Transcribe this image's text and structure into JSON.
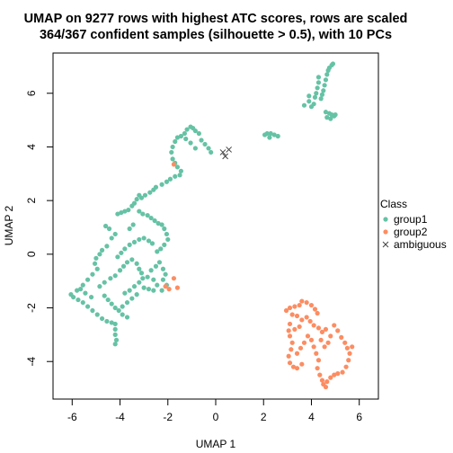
{
  "chart_data": {
    "type": "scatter",
    "title_line1": "UMAP on 9277 rows with highest ATC scores, rows are scaled",
    "title_line2": "364/367 confident samples (silhouette > 0.5), with 10 PCs",
    "xlabel": "UMAP 1",
    "ylabel": "UMAP 2",
    "xlim": [
      -6.8,
      6.8
    ],
    "ylim": [
      -5.4,
      7.5
    ],
    "xticks": [
      -6,
      -4,
      -2,
      0,
      2,
      4,
      6
    ],
    "yticks": [
      -4,
      -2,
      0,
      2,
      4,
      6
    ],
    "grid": false,
    "legend": {
      "title": "Class",
      "placement": "right",
      "items": [
        {
          "label": "group1",
          "color": "#66C2A5",
          "marker": "dot"
        },
        {
          "label": "group2",
          "color": "#FC8D62",
          "marker": "dot"
        },
        {
          "label": "ambiguous",
          "color": "#444444",
          "marker": "x"
        }
      ]
    },
    "series": [
      {
        "name": "group1",
        "color": "#66C2A5",
        "points": [
          [
            4.9,
            7.1
          ],
          [
            4.85,
            7.05
          ],
          [
            4.75,
            6.95
          ],
          [
            4.7,
            6.85
          ],
          [
            4.65,
            6.7
          ],
          [
            4.6,
            6.5
          ],
          [
            4.55,
            6.3
          ],
          [
            4.5,
            6.1
          ],
          [
            4.45,
            5.95
          ],
          [
            4.4,
            5.8
          ],
          [
            4.3,
            6.6
          ],
          [
            4.3,
            6.4
          ],
          [
            4.25,
            6.2
          ],
          [
            4.2,
            6.0
          ],
          [
            4.15,
            5.85
          ],
          [
            3.9,
            5.9
          ],
          [
            3.9,
            5.7
          ],
          [
            3.7,
            5.55
          ],
          [
            4.1,
            5.6
          ],
          [
            4.0,
            5.5
          ],
          [
            4.75,
            5.25
          ],
          [
            4.85,
            5.2
          ],
          [
            4.95,
            5.15
          ],
          [
            4.65,
            5.1
          ],
          [
            4.8,
            5.05
          ],
          [
            5.0,
            5.2
          ],
          [
            4.6,
            5.3
          ],
          [
            2.05,
            4.45
          ],
          [
            2.15,
            4.5
          ],
          [
            2.3,
            4.5
          ],
          [
            2.45,
            4.45
          ],
          [
            2.6,
            4.4
          ],
          [
            2.25,
            4.35
          ],
          [
            -1.05,
            4.75
          ],
          [
            -0.95,
            4.7
          ],
          [
            -1.2,
            4.65
          ],
          [
            -0.85,
            4.6
          ],
          [
            -1.3,
            4.5
          ],
          [
            -0.7,
            4.5
          ],
          [
            -1.45,
            4.4
          ],
          [
            -1.6,
            4.35
          ],
          [
            -1.7,
            4.2
          ],
          [
            -0.6,
            4.25
          ],
          [
            -0.45,
            4.1
          ],
          [
            -0.3,
            3.95
          ],
          [
            -0.2,
            3.8
          ],
          [
            -1.8,
            4.0
          ],
          [
            -1.85,
            3.8
          ],
          [
            -1.8,
            3.55
          ],
          [
            -1.7,
            3.4
          ],
          [
            -1.6,
            3.25
          ],
          [
            -1.45,
            3.1
          ],
          [
            -1.5,
            2.95
          ],
          [
            -1.7,
            2.9
          ],
          [
            -1.9,
            2.8
          ],
          [
            -2.05,
            2.7
          ],
          [
            -2.25,
            2.6
          ],
          [
            -2.5,
            2.5
          ],
          [
            -2.6,
            2.4
          ],
          [
            -2.75,
            2.3
          ],
          [
            -2.95,
            2.2
          ],
          [
            -3.1,
            2.1
          ],
          [
            -3.2,
            2.2
          ],
          [
            -3.3,
            2.05
          ],
          [
            -3.4,
            1.9
          ],
          [
            -3.5,
            1.8
          ],
          [
            -3.65,
            1.65
          ],
          [
            -3.8,
            1.6
          ],
          [
            -3.95,
            1.55
          ],
          [
            -4.1,
            1.5
          ],
          [
            -3.2,
            1.6
          ],
          [
            -3.05,
            1.5
          ],
          [
            -2.85,
            1.45
          ],
          [
            -2.7,
            1.35
          ],
          [
            -2.55,
            1.25
          ],
          [
            -2.4,
            1.15
          ],
          [
            -2.25,
            1.1
          ],
          [
            -2.15,
            0.95
          ],
          [
            -2.05,
            0.75
          ],
          [
            -2.0,
            0.55
          ],
          [
            -2.15,
            0.35
          ],
          [
            -2.3,
            0.2
          ],
          [
            -2.45,
            0.1
          ],
          [
            -4.85,
            0.0
          ],
          [
            -5.0,
            -0.15
          ],
          [
            -5.05,
            -0.35
          ],
          [
            -4.95,
            -0.55
          ],
          [
            -5.15,
            -0.75
          ],
          [
            -5.35,
            -0.95
          ],
          [
            -5.55,
            -1.15
          ],
          [
            -5.8,
            -1.35
          ],
          [
            -6.05,
            -1.5
          ],
          [
            -5.95,
            -1.6
          ],
          [
            -5.75,
            -1.7
          ],
          [
            -5.55,
            -1.8
          ],
          [
            -5.35,
            -1.95
          ],
          [
            -5.15,
            -2.1
          ],
          [
            -4.95,
            -2.25
          ],
          [
            -4.75,
            -2.4
          ],
          [
            -4.55,
            -2.5
          ],
          [
            -4.35,
            -2.55
          ],
          [
            -4.2,
            -2.6
          ],
          [
            -4.2,
            -2.8
          ],
          [
            -4.2,
            -3.0
          ],
          [
            -4.15,
            -3.2
          ],
          [
            -4.2,
            -3.35
          ],
          [
            -4.65,
            -1.55
          ],
          [
            -4.5,
            -1.7
          ],
          [
            -4.35,
            -1.85
          ],
          [
            -4.2,
            -2.0
          ],
          [
            -4.05,
            -2.1
          ],
          [
            -3.9,
            -2.25
          ],
          [
            -3.7,
            -2.35
          ],
          [
            -4.85,
            -1.2
          ],
          [
            -4.65,
            -1.05
          ],
          [
            -4.4,
            -0.9
          ],
          [
            -4.2,
            -0.8
          ],
          [
            -4.0,
            -0.6
          ],
          [
            -3.85,
            -0.45
          ],
          [
            -3.7,
            -0.3
          ],
          [
            -3.5,
            -0.2
          ],
          [
            -3.3,
            -0.35
          ],
          [
            -3.2,
            -0.55
          ],
          [
            -3.1,
            -0.7
          ],
          [
            -3.05,
            -0.9
          ],
          [
            -3.2,
            -1.05
          ],
          [
            -3.4,
            -1.2
          ],
          [
            -3.6,
            -1.35
          ],
          [
            -3.8,
            -1.45
          ],
          [
            -3.0,
            -1.25
          ],
          [
            -2.8,
            -1.3
          ],
          [
            -2.6,
            -1.35
          ],
          [
            -2.45,
            -1.15
          ],
          [
            -2.6,
            -0.95
          ],
          [
            -2.85,
            -0.85
          ],
          [
            -2.7,
            -0.6
          ],
          [
            -2.5,
            -0.45
          ],
          [
            -2.35,
            -0.3
          ],
          [
            -2.2,
            -0.55
          ],
          [
            -2.1,
            -0.75
          ],
          [
            -2.2,
            -0.95
          ],
          [
            -2.05,
            -1.15
          ],
          [
            -2.25,
            -1.35
          ],
          [
            -4.1,
            -0.1
          ],
          [
            -3.95,
            0.05
          ],
          [
            -3.8,
            0.2
          ],
          [
            -3.6,
            0.35
          ],
          [
            -3.4,
            0.45
          ],
          [
            -3.2,
            0.55
          ],
          [
            -3.0,
            0.6
          ],
          [
            -2.8,
            0.5
          ],
          [
            -2.65,
            0.4
          ],
          [
            -4.35,
            0.6
          ],
          [
            -4.2,
            0.75
          ],
          [
            -4.45,
            0.95
          ],
          [
            -4.6,
            1.05
          ],
          [
            -3.6,
            0.95
          ],
          [
            -3.45,
            1.1
          ],
          [
            -5.2,
            -1.6
          ],
          [
            -5.45,
            -1.45
          ],
          [
            -5.65,
            -1.3
          ],
          [
            -4.55,
            0.3
          ],
          [
            -4.75,
            0.15
          ],
          [
            -3.3,
            -1.5
          ],
          [
            -3.5,
            -1.65
          ],
          [
            -3.7,
            -1.8
          ],
          [
            -3.9,
            -1.95
          ],
          [
            -1.25,
            4.3
          ],
          [
            -1.05,
            4.15
          ],
          [
            -0.85,
            3.95
          ]
        ]
      },
      {
        "name": "group2",
        "color": "#FC8D62",
        "points": [
          [
            -1.75,
            3.35
          ],
          [
            -1.75,
            -0.9
          ],
          [
            -1.6,
            -1.25
          ],
          [
            -1.95,
            -1.3
          ],
          [
            -2.1,
            -1.2
          ],
          [
            2.95,
            -2.1
          ],
          [
            3.1,
            -2.0
          ],
          [
            3.3,
            -1.95
          ],
          [
            3.5,
            -1.9
          ],
          [
            3.6,
            -1.75
          ],
          [
            3.8,
            -1.8
          ],
          [
            4.0,
            -1.9
          ],
          [
            4.15,
            -2.05
          ],
          [
            4.25,
            -2.2
          ],
          [
            3.2,
            -2.25
          ],
          [
            3.4,
            -2.3
          ],
          [
            3.6,
            -2.45
          ],
          [
            3.8,
            -2.35
          ],
          [
            3.95,
            -2.5
          ],
          [
            4.1,
            -2.65
          ],
          [
            4.3,
            -2.75
          ],
          [
            4.45,
            -2.9
          ],
          [
            4.6,
            -2.8
          ],
          [
            3.1,
            -2.6
          ],
          [
            3.05,
            -2.85
          ],
          [
            3.1,
            -3.05
          ],
          [
            3.2,
            -3.3
          ],
          [
            3.15,
            -3.55
          ],
          [
            3.05,
            -3.8
          ],
          [
            3.1,
            -4.05
          ],
          [
            3.25,
            -4.2
          ],
          [
            3.4,
            -4.25
          ],
          [
            3.6,
            -4.1
          ],
          [
            3.4,
            -3.7
          ],
          [
            3.55,
            -3.5
          ],
          [
            3.7,
            -3.3
          ],
          [
            3.85,
            -3.05
          ],
          [
            4.0,
            -3.2
          ],
          [
            4.1,
            -3.45
          ],
          [
            4.2,
            -3.7
          ],
          [
            4.3,
            -3.95
          ],
          [
            4.25,
            -4.25
          ],
          [
            4.35,
            -4.5
          ],
          [
            4.45,
            -4.7
          ],
          [
            4.5,
            -4.85
          ],
          [
            4.6,
            -4.95
          ],
          [
            4.65,
            -4.75
          ],
          [
            4.8,
            -4.6
          ],
          [
            4.95,
            -4.5
          ],
          [
            5.1,
            -4.45
          ],
          [
            5.3,
            -4.4
          ],
          [
            5.45,
            -4.2
          ],
          [
            5.55,
            -3.95
          ],
          [
            5.6,
            -3.7
          ],
          [
            5.5,
            -3.5
          ],
          [
            5.7,
            -3.45
          ],
          [
            5.4,
            -3.3
          ],
          [
            5.25,
            -3.1
          ],
          [
            5.1,
            -2.85
          ],
          [
            4.95,
            -2.65
          ],
          [
            4.8,
            -3.05
          ],
          [
            4.7,
            -3.3
          ],
          [
            3.3,
            -2.8
          ],
          [
            3.5,
            -2.7
          ],
          [
            4.4,
            -3.2
          ],
          [
            4.55,
            -3.45
          ]
        ]
      },
      {
        "name": "ambiguous",
        "color": "#444444",
        "points": [
          [
            0.3,
            3.8
          ],
          [
            0.4,
            3.65
          ],
          [
            0.55,
            3.9
          ]
        ]
      }
    ]
  }
}
